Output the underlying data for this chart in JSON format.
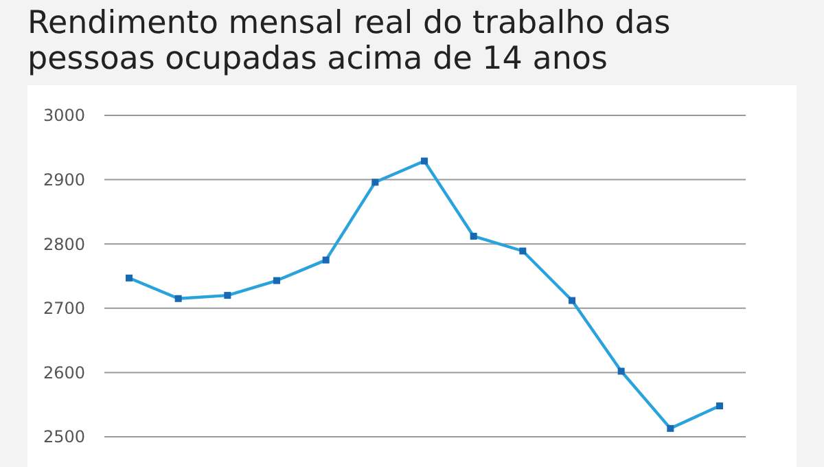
{
  "chart_data": {
    "type": "line",
    "title": "Rendimento mensal real do trabalho das pessoas ocupadas acima de 14 anos",
    "categories": [
      null,
      null,
      null,
      null,
      null,
      null,
      null,
      null,
      null,
      null,
      null,
      null,
      null
    ],
    "series": [
      {
        "color": "#2aa3dc",
        "values": [
          2747,
          2715,
          2720,
          2743,
          2775,
          2896,
          2929,
          2812,
          2789,
          2712,
          2602,
          2513,
          2548
        ]
      }
    ],
    "ylim": [
      2500,
      3000
    ],
    "yticks": [
      2500,
      2600,
      2700,
      2800,
      2900,
      3000
    ],
    "grid": "y",
    "marker": "square",
    "tick_labels": "y"
  }
}
